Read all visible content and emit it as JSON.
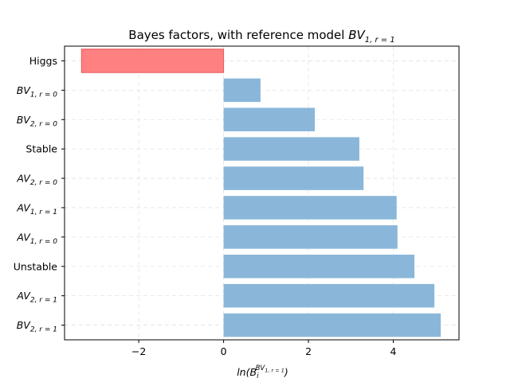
{
  "chart_data": {
    "type": "bar",
    "orientation": "horizontal",
    "title": {
      "text": "Bayes factors, with reference model ",
      "math_base": "BV",
      "math_sub": "1, r = 1"
    },
    "xlabel": {
      "base": "ln(B",
      "sub": "i",
      "sup_base": "BV",
      "sup_sub": "1, r = 1",
      "close": ")"
    },
    "xlim": [
      -3.75,
      5.55
    ],
    "xticks": [
      -2,
      0,
      2,
      4
    ],
    "xtick_labels": [
      "−2",
      "0",
      "2",
      "4"
    ],
    "grid": true,
    "categories": [
      {
        "label": "Higgs",
        "math": false,
        "value": -3.35,
        "color": "#ff8080"
      },
      {
        "label": "BV",
        "sub": "1, r = 0",
        "math": true,
        "value": 0.87,
        "color": "#8ab7d9"
      },
      {
        "label": "BV",
        "sub": "2, r = 0",
        "math": true,
        "value": 2.15,
        "color": "#8ab7d9"
      },
      {
        "label": "Stable",
        "math": false,
        "value": 3.2,
        "color": "#8ab7d9"
      },
      {
        "label": "AV",
        "sub": "2, r = 0",
        "math": true,
        "value": 3.3,
        "color": "#8ab7d9"
      },
      {
        "label": "AV",
        "sub": "1, r = 1",
        "math": true,
        "value": 4.08,
        "color": "#8ab7d9"
      },
      {
        "label": "AV",
        "sub": "1, r = 0",
        "math": true,
        "value": 4.1,
        "color": "#8ab7d9"
      },
      {
        "label": "Unstable",
        "math": false,
        "value": 4.5,
        "color": "#8ab7d9"
      },
      {
        "label": "AV",
        "sub": "2, r = 1",
        "math": true,
        "value": 4.97,
        "color": "#8ab7d9"
      },
      {
        "label": "BV",
        "sub": "2, r = 1",
        "math": true,
        "value": 5.12,
        "color": "#8ab7d9"
      }
    ]
  }
}
